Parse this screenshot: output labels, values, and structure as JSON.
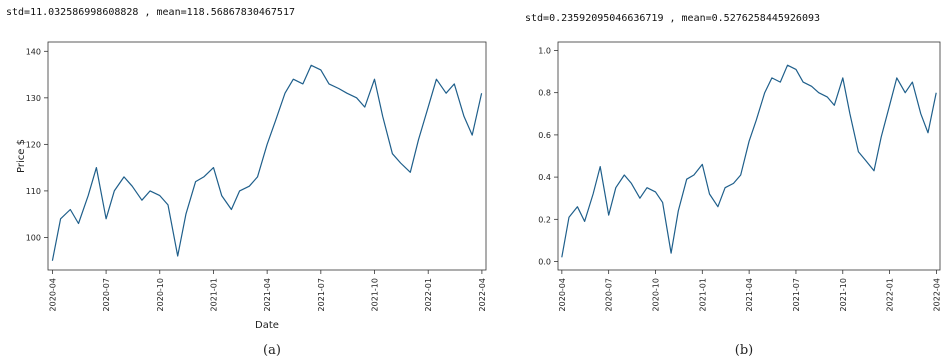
{
  "chart_data": [
    {
      "type": "line",
      "caption": "(a)",
      "stats_text": "std=11.032586998608828 , mean=118.56867830467517",
      "xlabel": "Date",
      "ylabel": "Price $",
      "ylim": [
        93,
        142
      ],
      "yticks": [
        100,
        110,
        120,
        130,
        140
      ],
      "xticks": [
        "2020-04",
        "2020-07",
        "2020-10",
        "2021-01",
        "2021-04",
        "2021-07",
        "2021-10",
        "2022-01",
        "2022-04"
      ],
      "series": [
        {
          "color": "#1f5f8b",
          "x": [
            "2020-04-01",
            "2020-04-15",
            "2020-05-01",
            "2020-05-15",
            "2020-06-01",
            "2020-06-15",
            "2020-07-01",
            "2020-07-15",
            "2020-08-01",
            "2020-08-15",
            "2020-09-01",
            "2020-09-15",
            "2020-10-01",
            "2020-10-15",
            "2020-11-01",
            "2020-11-15",
            "2020-12-01",
            "2020-12-15",
            "2021-01-01",
            "2021-01-15",
            "2021-02-01",
            "2021-02-15",
            "2021-03-01",
            "2021-03-15",
            "2021-04-01",
            "2021-04-15",
            "2021-05-01",
            "2021-05-15",
            "2021-06-01",
            "2021-06-15",
            "2021-07-01",
            "2021-07-15",
            "2021-08-01",
            "2021-08-15",
            "2021-09-01",
            "2021-09-15",
            "2021-10-01",
            "2021-10-15",
            "2021-11-01",
            "2021-11-15",
            "2021-12-01",
            "2021-12-15",
            "2022-01-01",
            "2022-01-15",
            "2022-02-01",
            "2022-02-15",
            "2022-03-01",
            "2022-03-15",
            "2022-03-31"
          ],
          "y": [
            95,
            104,
            106,
            103,
            109,
            115,
            104,
            110,
            113,
            111,
            108,
            110,
            109,
            107,
            96,
            105,
            112,
            113,
            115,
            109,
            106,
            110,
            111,
            113,
            120,
            125,
            131,
            134,
            133,
            137,
            136,
            133,
            132,
            131,
            130,
            128,
            134,
            126,
            118,
            116,
            114,
            121,
            128,
            134,
            131,
            133,
            126,
            122,
            131
          ]
        }
      ]
    },
    {
      "type": "line",
      "caption": "(b)",
      "stats_text": "std=0.23592095046636719 , mean=0.5276258445926093",
      "xlabel": "",
      "ylabel": "",
      "ylim": [
        -0.04,
        1.04
      ],
      "yticks": [
        0.0,
        0.2,
        0.4,
        0.6,
        0.8,
        1.0
      ],
      "xticks": [
        "2020-04",
        "2020-07",
        "2020-10",
        "2021-01",
        "2021-04",
        "2021-07",
        "2021-10",
        "2022-01",
        "2022-04"
      ],
      "series": [
        {
          "color": "#1f5f8b",
          "x": [
            "2020-04-01",
            "2020-04-15",
            "2020-05-01",
            "2020-05-15",
            "2020-06-01",
            "2020-06-15",
            "2020-07-01",
            "2020-07-15",
            "2020-08-01",
            "2020-08-15",
            "2020-09-01",
            "2020-09-15",
            "2020-10-01",
            "2020-10-15",
            "2020-11-01",
            "2020-11-15",
            "2020-12-01",
            "2020-12-15",
            "2021-01-01",
            "2021-01-15",
            "2021-02-01",
            "2021-02-15",
            "2021-03-01",
            "2021-03-15",
            "2021-04-01",
            "2021-04-15",
            "2021-05-01",
            "2021-05-15",
            "2021-06-01",
            "2021-06-15",
            "2021-07-01",
            "2021-07-15",
            "2021-08-01",
            "2021-08-15",
            "2021-09-01",
            "2021-09-15",
            "2021-10-01",
            "2021-10-15",
            "2021-11-01",
            "2021-11-15",
            "2021-12-01",
            "2021-12-15",
            "2022-01-01",
            "2022-01-15",
            "2022-02-01",
            "2022-02-15",
            "2022-03-01",
            "2022-03-15",
            "2022-03-31"
          ],
          "y": [
            0.02,
            0.21,
            0.26,
            0.19,
            0.32,
            0.45,
            0.22,
            0.35,
            0.41,
            0.37,
            0.3,
            0.35,
            0.33,
            0.28,
            0.04,
            0.24,
            0.39,
            0.41,
            0.46,
            0.32,
            0.26,
            0.35,
            0.37,
            0.41,
            0.57,
            0.67,
            0.8,
            0.87,
            0.85,
            0.93,
            0.91,
            0.85,
            0.83,
            0.8,
            0.78,
            0.74,
            0.87,
            0.7,
            0.52,
            0.48,
            0.43,
            0.59,
            0.74,
            0.87,
            0.8,
            0.85,
            0.7,
            0.61,
            0.8
          ]
        }
      ]
    }
  ]
}
